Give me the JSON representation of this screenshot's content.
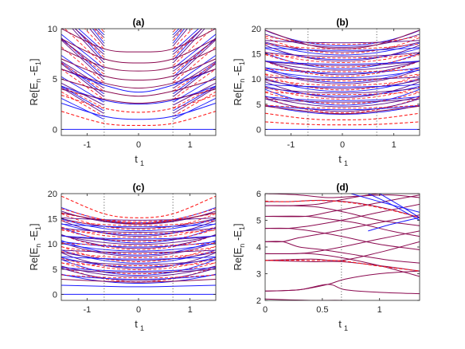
{
  "chart_data": [
    {
      "type": "line",
      "title": "(a)",
      "ylabel": "Re[E",
      "ylabel_sub_n": "n",
      "ylabel_mid": " -E",
      "ylabel_sub_1": "1",
      "ylabel_end": "]",
      "xlabel": "t",
      "xlabel_sub": "1",
      "xlim": [
        -1.5,
        1.5
      ],
      "ylim": [
        -0.6,
        10
      ],
      "xticks": [
        -1,
        0,
        1
      ],
      "xtick_labels": [
        "-1",
        "0",
        "1"
      ],
      "yticks": [
        0,
        5,
        10
      ],
      "ytick_labels": [
        "0",
        "5",
        "10"
      ],
      "dotted_vlines": [
        -0.667,
        0.667
      ],
      "spread_region": "outer",
      "series": [
        {
          "style": "solid-blue",
          "curves": [
            {
              "x": [
                -1.5,
                0,
                1.5
              ],
              "y": [
                0,
                0,
                0
              ]
            },
            {
              "x": [
                -1.5,
                -0.667,
                0,
                0.667,
                1.5
              ],
              "y": [
                2.6,
                1.3,
                1.0,
                1.3,
                2.6
              ]
            },
            {
              "x": [
                -1.5,
                -0.667,
                0,
                0.667,
                1.5
              ],
              "y": [
                4.3,
                2.9,
                2.5,
                2.9,
                4.3
              ]
            },
            {
              "x": [
                -1.5,
                -0.667,
                0,
                0.667,
                1.5
              ],
              "y": [
                6.0,
                4.4,
                3.7,
                4.4,
                6.0
              ]
            }
          ]
        },
        {
          "style": "dashed-red",
          "curves": [
            {
              "x": [
                -1.5,
                -0.667,
                0,
                0.667,
                1.5
              ],
              "y": [
                1.8,
                0.6,
                0.4,
                0.6,
                1.8
              ]
            },
            {
              "x": [
                -1.5,
                -0.667,
                0,
                0.667,
                1.5
              ],
              "y": [
                3.4,
                2.1,
                1.7,
                2.1,
                3.4
              ]
            }
          ]
        },
        {
          "style": "solid-purple",
          "curves": [
            {
              "x": [
                -1.5,
                -0.667,
                0,
                0.667,
                1.5
              ],
              "y": [
                10.0,
                8.0,
                7.7,
                8.0,
                10.0
              ]
            },
            {
              "x": [
                -1.5,
                -0.667,
                0,
                0.667,
                1.5
              ],
              "y": [
                9.0,
                7.0,
                6.6,
                7.0,
                9.0
              ]
            },
            {
              "x": [
                -1.5,
                -0.667,
                0,
                0.667,
                1.5
              ],
              "y": [
                8.0,
                6.2,
                5.8,
                6.2,
                8.0
              ]
            },
            {
              "x": [
                -1.5,
                -0.667,
                0,
                0.667,
                1.5
              ],
              "y": [
                7.0,
                5.3,
                4.9,
                5.3,
                7.0
              ]
            },
            {
              "x": [
                -1.5,
                -0.667,
                0,
                0.667,
                1.5
              ],
              "y": [
                6.0,
                4.6,
                4.1,
                4.6,
                6.0
              ]
            },
            {
              "x": [
                -1.5,
                -0.667,
                0,
                0.667,
                1.5
              ],
              "y": [
                5.0,
                3.8,
                3.3,
                3.8,
                5.0
              ]
            },
            {
              "x": [
                -1.5,
                -0.667,
                0,
                0.667,
                1.5
              ],
              "y": [
                4.0,
                3.0,
                2.6,
                3.0,
                4.0
              ]
            }
          ]
        }
      ]
    },
    {
      "type": "line",
      "title": "(b)",
      "ylabel": "Re[E",
      "ylabel_sub_n": "n",
      "ylabel_mid": " -E",
      "ylabel_sub_1": "1",
      "ylabel_end": "]",
      "xlabel": "t",
      "xlabel_sub": "1",
      "xlim": [
        -1.5,
        1.5
      ],
      "ylim": [
        -1.2,
        20
      ],
      "xticks": [
        -1,
        0,
        1
      ],
      "xtick_labels": [
        "-1",
        "0",
        "1"
      ],
      "yticks": [
        0,
        5,
        10,
        15,
        20
      ],
      "ytick_labels": [
        "0",
        "5",
        "10",
        "15",
        "20"
      ],
      "dotted_vlines": [
        -0.667,
        0.667
      ],
      "spread_region": "all",
      "series": [
        {
          "style": "solid-blue",
          "curves": [
            {
              "x": [
                -1.5,
                0,
                1.5
              ],
              "y": [
                0,
                0,
                0
              ]
            }
          ]
        },
        {
          "style": "dashed-red",
          "curves": [
            {
              "x": [
                -1.5,
                -0.667,
                0,
                0.667,
                1.5
              ],
              "y": [
                1.5,
                1.0,
                0.9,
                1.0,
                1.5
              ]
            },
            {
              "x": [
                -1.5,
                -0.667,
                0,
                0.667,
                1.5
              ],
              "y": [
                3.2,
                2.1,
                1.9,
                2.1,
                3.2
              ]
            }
          ]
        },
        {
          "style": "solid-purple",
          "curves": [
            {
              "x": [
                -1.5,
                -0.667,
                0,
                0.667,
                1.5
              ],
              "y": [
                19.7,
                16.8,
                16.0,
                16.8,
                19.7
              ]
            },
            {
              "x": [
                -1.5,
                -0.667,
                0,
                0.667,
                1.5
              ],
              "y": [
                4.6,
                3.6,
                3.1,
                3.6,
                4.6
              ]
            }
          ]
        }
      ]
    },
    {
      "type": "line",
      "title": "(c)",
      "ylabel": "Re[E",
      "ylabel_sub_n": "n",
      "ylabel_mid": " -E",
      "ylabel_sub_1": "1",
      "ylabel_end": "]",
      "xlabel": "t",
      "xlabel_sub": "1",
      "xlim": [
        -1.5,
        1.5
      ],
      "ylim": [
        -1.2,
        20
      ],
      "xticks": [
        -1,
        0,
        1
      ],
      "xtick_labels": [
        "-1",
        "0",
        "1"
      ],
      "yticks": [
        0,
        5,
        10,
        15,
        20
      ],
      "ytick_labels": [
        "0",
        "5",
        "10",
        "15",
        "20"
      ],
      "dotted_vlines": [
        -0.667,
        0.667
      ],
      "spread_region": "all",
      "series": [
        {
          "style": "solid-blue",
          "curves": [
            {
              "x": [
                -1.5,
                0,
                1.5
              ],
              "y": [
                0,
                0,
                0
              ]
            },
            {
              "x": [
                -1.5,
                -0.667,
                0,
                0.667,
                1.5
              ],
              "y": [
                1.8,
                1.6,
                1.5,
                1.6,
                1.8
              ]
            }
          ]
        },
        {
          "style": "dashed-red",
          "curves": [
            {
              "x": [
                -1.5,
                -0.667,
                0,
                0.667,
                1.5
              ],
              "y": [
                19.5,
                16.0,
                15.2,
                16.0,
                19.5
              ]
            },
            {
              "x": [
                -1.5,
                -0.667,
                0,
                0.667,
                1.5
              ],
              "y": [
                17.0,
                14.8,
                14.2,
                14.8,
                17.0
              ]
            }
          ]
        },
        {
          "style": "solid-purple",
          "curves": [
            {
              "x": [
                -1.5,
                -0.667,
                0,
                0.667,
                1.5
              ],
              "y": [
                16.2,
                14.6,
                14.0,
                14.6,
                16.2
              ]
            },
            {
              "x": [
                -1.5,
                -0.667,
                0,
                0.667,
                1.5
              ],
              "y": [
                3.0,
                2.6,
                2.4,
                2.6,
                3.0
              ]
            }
          ]
        }
      ]
    },
    {
      "type": "line",
      "title": "(d)",
      "ylabel": "Re[E",
      "ylabel_sub_n": "n",
      "ylabel_mid": " -E",
      "ylabel_sub_1": "1",
      "ylabel_end": "]",
      "xlabel": "t",
      "xlabel_sub": "1",
      "xlim": [
        0,
        1.35
      ],
      "ylim": [
        2,
        6
      ],
      "xticks": [
        0,
        0.5,
        1
      ],
      "xtick_labels": [
        "0",
        "0.5",
        "1"
      ],
      "yticks": [
        2,
        3,
        4,
        5,
        6
      ],
      "ytick_labels": [
        "2",
        "3",
        "4",
        "5",
        "6"
      ],
      "dotted_vlines": [
        0.667
      ],
      "spread_region": "none",
      "series": [
        {
          "style": "solid-purple",
          "curves": [
            {
              "x": [
                0,
                0.4,
                0.667,
                1.0,
                1.35
              ],
              "y": [
                2.05,
                2.0,
                2.0,
                1.95,
                1.9
              ]
            },
            {
              "x": [
                0,
                0.3,
                0.55,
                0.7,
                1.0,
                1.35
              ],
              "y": [
                2.35,
                2.4,
                2.6,
                2.8,
                3.0,
                3.1
              ]
            },
            {
              "x": [
                0,
                0.3,
                0.55,
                0.7,
                1.0,
                1.35
              ],
              "y": [
                2.35,
                2.4,
                2.6,
                2.4,
                2.3,
                2.25
              ]
            },
            {
              "x": [
                0,
                0.4,
                0.667,
                1.0,
                1.35
              ],
              "y": [
                3.5,
                3.45,
                3.45,
                3.3,
                3.1
              ]
            },
            {
              "x": [
                0,
                0.4,
                0.667,
                1.0,
                1.35
              ],
              "y": [
                3.5,
                3.55,
                3.5,
                3.8,
                4.2
              ]
            },
            {
              "x": [
                0,
                0.25,
                0.4,
                0.667,
                1.0,
                1.35
              ],
              "y": [
                3.75,
                3.75,
                3.75,
                3.6,
                3.3,
                2.9
              ]
            },
            {
              "x": [
                0,
                0.25,
                0.4,
                0.667,
                1.0,
                1.35
              ],
              "y": [
                3.75,
                3.75,
                3.8,
                4.0,
                4.3,
                4.6
              ]
            },
            {
              "x": [
                0,
                0.15,
                0.3,
                0.5,
                0.8,
                1.1,
                1.35
              ],
              "y": [
                4.2,
                4.2,
                4.0,
                3.9,
                3.7,
                3.5,
                3.4
              ]
            },
            {
              "x": [
                0,
                0.15,
                0.3,
                0.5,
                0.8,
                1.1,
                1.35
              ],
              "y": [
                4.2,
                4.2,
                4.35,
                4.5,
                4.75,
                5.0,
                5.2
              ]
            },
            {
              "x": [
                0,
                0.2,
                0.4,
                0.667,
                1.0,
                1.35
              ],
              "y": [
                4.7,
                4.7,
                4.6,
                4.4,
                4.1,
                3.9
              ]
            },
            {
              "x": [
                0,
                0.2,
                0.4,
                0.667,
                1.0,
                1.35
              ],
              "y": [
                4.7,
                4.7,
                4.8,
                5.0,
                5.3,
                5.6
              ]
            },
            {
              "x": [
                0,
                0.35,
                0.55,
                0.8,
                1.1,
                1.35
              ],
              "y": [
                5.15,
                5.15,
                5.05,
                4.9,
                4.6,
                4.4
              ]
            },
            {
              "x": [
                0,
                0.35,
                0.55,
                0.8,
                1.1,
                1.35
              ],
              "y": [
                5.15,
                5.15,
                5.3,
                5.5,
                5.75,
                5.95
              ]
            },
            {
              "x": [
                0,
                0.2,
                0.45,
                0.7,
                1.0,
                1.35
              ],
              "y": [
                5.55,
                5.55,
                5.5,
                5.3,
                5.0,
                4.8
              ]
            },
            {
              "x": [
                0,
                0.2,
                0.45,
                0.7,
                1.0,
                1.35
              ],
              "y": [
                5.55,
                5.55,
                5.6,
                5.8,
                6.0,
                6.0
              ]
            },
            {
              "x": [
                0,
                0.2,
                0.5,
                0.8,
                1.1,
                1.35
              ],
              "y": [
                5.7,
                5.7,
                5.75,
                5.65,
                5.4,
                5.1
              ]
            },
            {
              "x": [
                0,
                0.3,
                0.55,
                0.8,
                1.1,
                1.35
              ],
              "y": [
                6.0,
                5.95,
                5.85,
                5.9,
                5.95,
                5.85
              ]
            }
          ]
        },
        {
          "style": "solid-blue",
          "curves": [
            {
              "x": [
                0.75,
                1.0,
                1.35
              ],
              "y": [
                6.0,
                5.7,
                5.3
              ]
            },
            {
              "x": [
                0.9,
                1.1,
                1.35
              ],
              "y": [
                6.0,
                5.6,
                5.0
              ]
            },
            {
              "x": [
                1.0,
                1.2,
                1.35
              ],
              "y": [
                6.0,
                5.5,
                5.1
              ]
            },
            {
              "x": [
                0.9,
                1.1,
                1.35
              ],
              "y": [
                4.6,
                4.85,
                5.1
              ]
            }
          ]
        },
        {
          "style": "dashed-red",
          "curves": [
            {
              "x": [
                0,
                0.4,
                0.667,
                1.0,
                1.35
              ],
              "y": [
                3.5,
                3.5,
                3.48,
                3.28,
                3.1
              ]
            },
            {
              "x": [
                0,
                0.2,
                0.5,
                0.8,
                1.1,
                1.35
              ],
              "y": [
                5.72,
                5.7,
                5.74,
                5.63,
                5.38,
                5.1
              ]
            }
          ]
        }
      ]
    }
  ]
}
